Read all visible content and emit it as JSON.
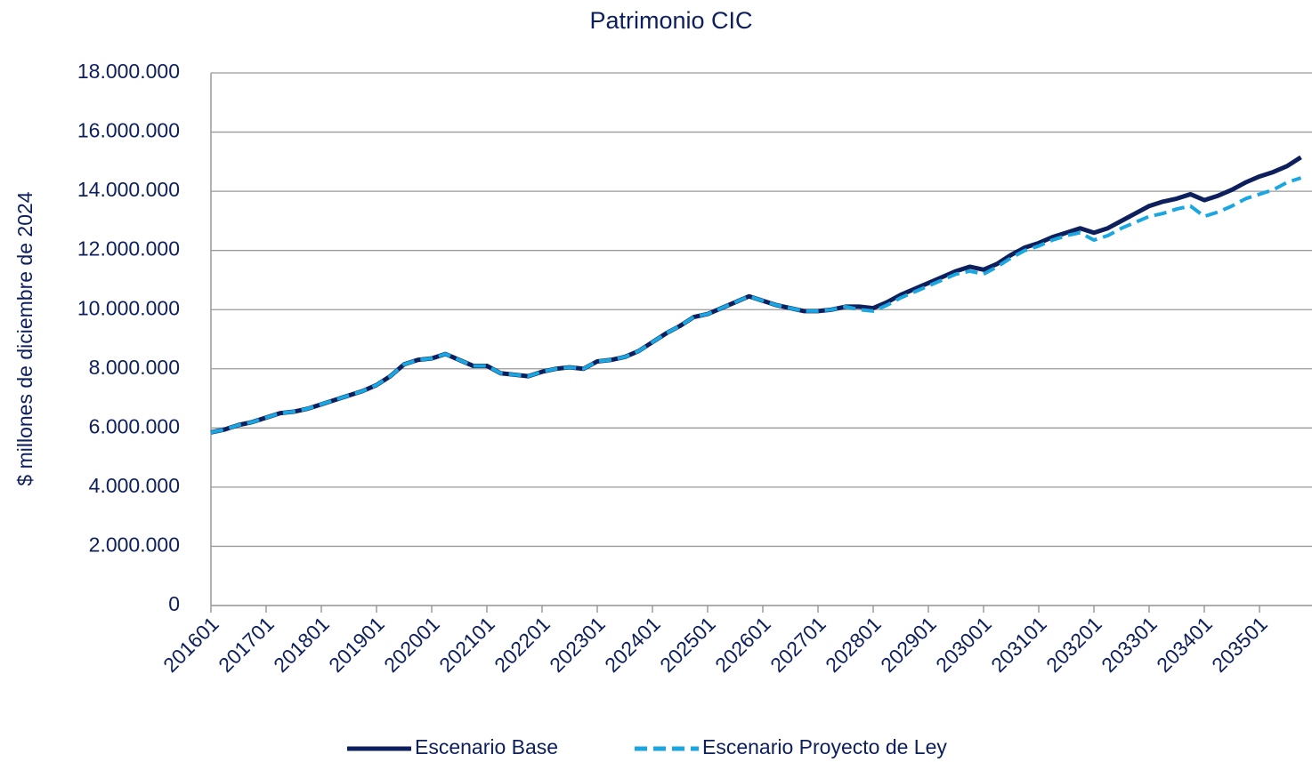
{
  "chart_data": {
    "type": "line",
    "title": "Patrimonio CIC",
    "y_label": "$ millones de diciembre de 2024",
    "categories": [
      "201601",
      null,
      null,
      null,
      "201701",
      null,
      null,
      null,
      "201801",
      null,
      null,
      null,
      "201901",
      null,
      null,
      null,
      "202001",
      null,
      null,
      null,
      "202101",
      null,
      null,
      null,
      "202201",
      null,
      null,
      null,
      "202301",
      null,
      null,
      null,
      "202401",
      null,
      null,
      null,
      "202501",
      null,
      null,
      null,
      "202601",
      null,
      null,
      null,
      "202701",
      null,
      null,
      null,
      "202801",
      null,
      null,
      null,
      "202901",
      null,
      null,
      null,
      "203001",
      null,
      null,
      null,
      "203101",
      null,
      null,
      null,
      "203201",
      null,
      null,
      null,
      "203301",
      null,
      null,
      null,
      "203401",
      null,
      null,
      null,
      "203501",
      null,
      null,
      null
    ],
    "series": [
      {
        "name": "Escenario Base",
        "color": "#0d1f5c",
        "dashed": false,
        "values": [
          5850000,
          5950000,
          6100000,
          6200000,
          6350000,
          6500000,
          6550000,
          6650000,
          6800000,
          6950000,
          7100000,
          7250000,
          7450000,
          7750000,
          8150000,
          8300000,
          8350000,
          8500000,
          8300000,
          8100000,
          8100000,
          7850000,
          7800000,
          7750000,
          7900000,
          8000000,
          8050000,
          8000000,
          8250000,
          8300000,
          8400000,
          8600000,
          8900000,
          9200000,
          9450000,
          9750000,
          9850000,
          10050000,
          10250000,
          10450000,
          10300000,
          10150000,
          10050000,
          9950000,
          9950000,
          10000000,
          10100000,
          10100000,
          10050000,
          10250000,
          10500000,
          10700000,
          10900000,
          11100000,
          11300000,
          11450000,
          11350000,
          11550000,
          11850000,
          12100000,
          12250000,
          12450000,
          12600000,
          12750000,
          12600000,
          12750000,
          13000000,
          13250000,
          13500000,
          13650000,
          13750000,
          13900000,
          13700000,
          13850000,
          14050000,
          14300000,
          14500000,
          14650000,
          14850000,
          15150000
        ]
      },
      {
        "name": "Escenario Proyecto de Ley",
        "color": "#1aa6e0",
        "dashed": true,
        "values": [
          5850000,
          5950000,
          6100000,
          6200000,
          6350000,
          6500000,
          6550000,
          6650000,
          6800000,
          6950000,
          7100000,
          7250000,
          7450000,
          7750000,
          8150000,
          8300000,
          8350000,
          8500000,
          8300000,
          8100000,
          8100000,
          7850000,
          7800000,
          7750000,
          7900000,
          8000000,
          8050000,
          8000000,
          8250000,
          8300000,
          8400000,
          8600000,
          8900000,
          9200000,
          9450000,
          9750000,
          9850000,
          10050000,
          10250000,
          10450000,
          10300000,
          10150000,
          10050000,
          9950000,
          9950000,
          10000000,
          10100000,
          10000000,
          9950000,
          10150000,
          10400000,
          10600000,
          10800000,
          11000000,
          11200000,
          11300000,
          11200000,
          11450000,
          11750000,
          12000000,
          12150000,
          12350000,
          12500000,
          12600000,
          12350000,
          12500000,
          12750000,
          12950000,
          13150000,
          13250000,
          13400000,
          13500000,
          13150000,
          13300000,
          13500000,
          13750000,
          13900000,
          14050000,
          14300000,
          14450000
        ]
      }
    ],
    "ylim": [
      0,
      18000000
    ],
    "yticks": [
      0,
      {
        "value": 2000000,
        "label": "2.000.000"
      },
      {
        "value": 4000000,
        "label": "4.000.000"
      },
      {
        "value": 6000000,
        "label": "6.000.000"
      },
      {
        "value": 8000000,
        "label": "8.000.000"
      },
      {
        "value": 10000000,
        "label": "10.000.000"
      },
      {
        "value": 12000000,
        "label": "12.000.000"
      },
      {
        "value": 14000000,
        "label": "14.000.000"
      },
      {
        "value": 16000000,
        "label": "16.000.000"
      },
      {
        "value": 18000000,
        "label": "18.000.000"
      }
    ],
    "grid": true,
    "legend": "bottom"
  }
}
